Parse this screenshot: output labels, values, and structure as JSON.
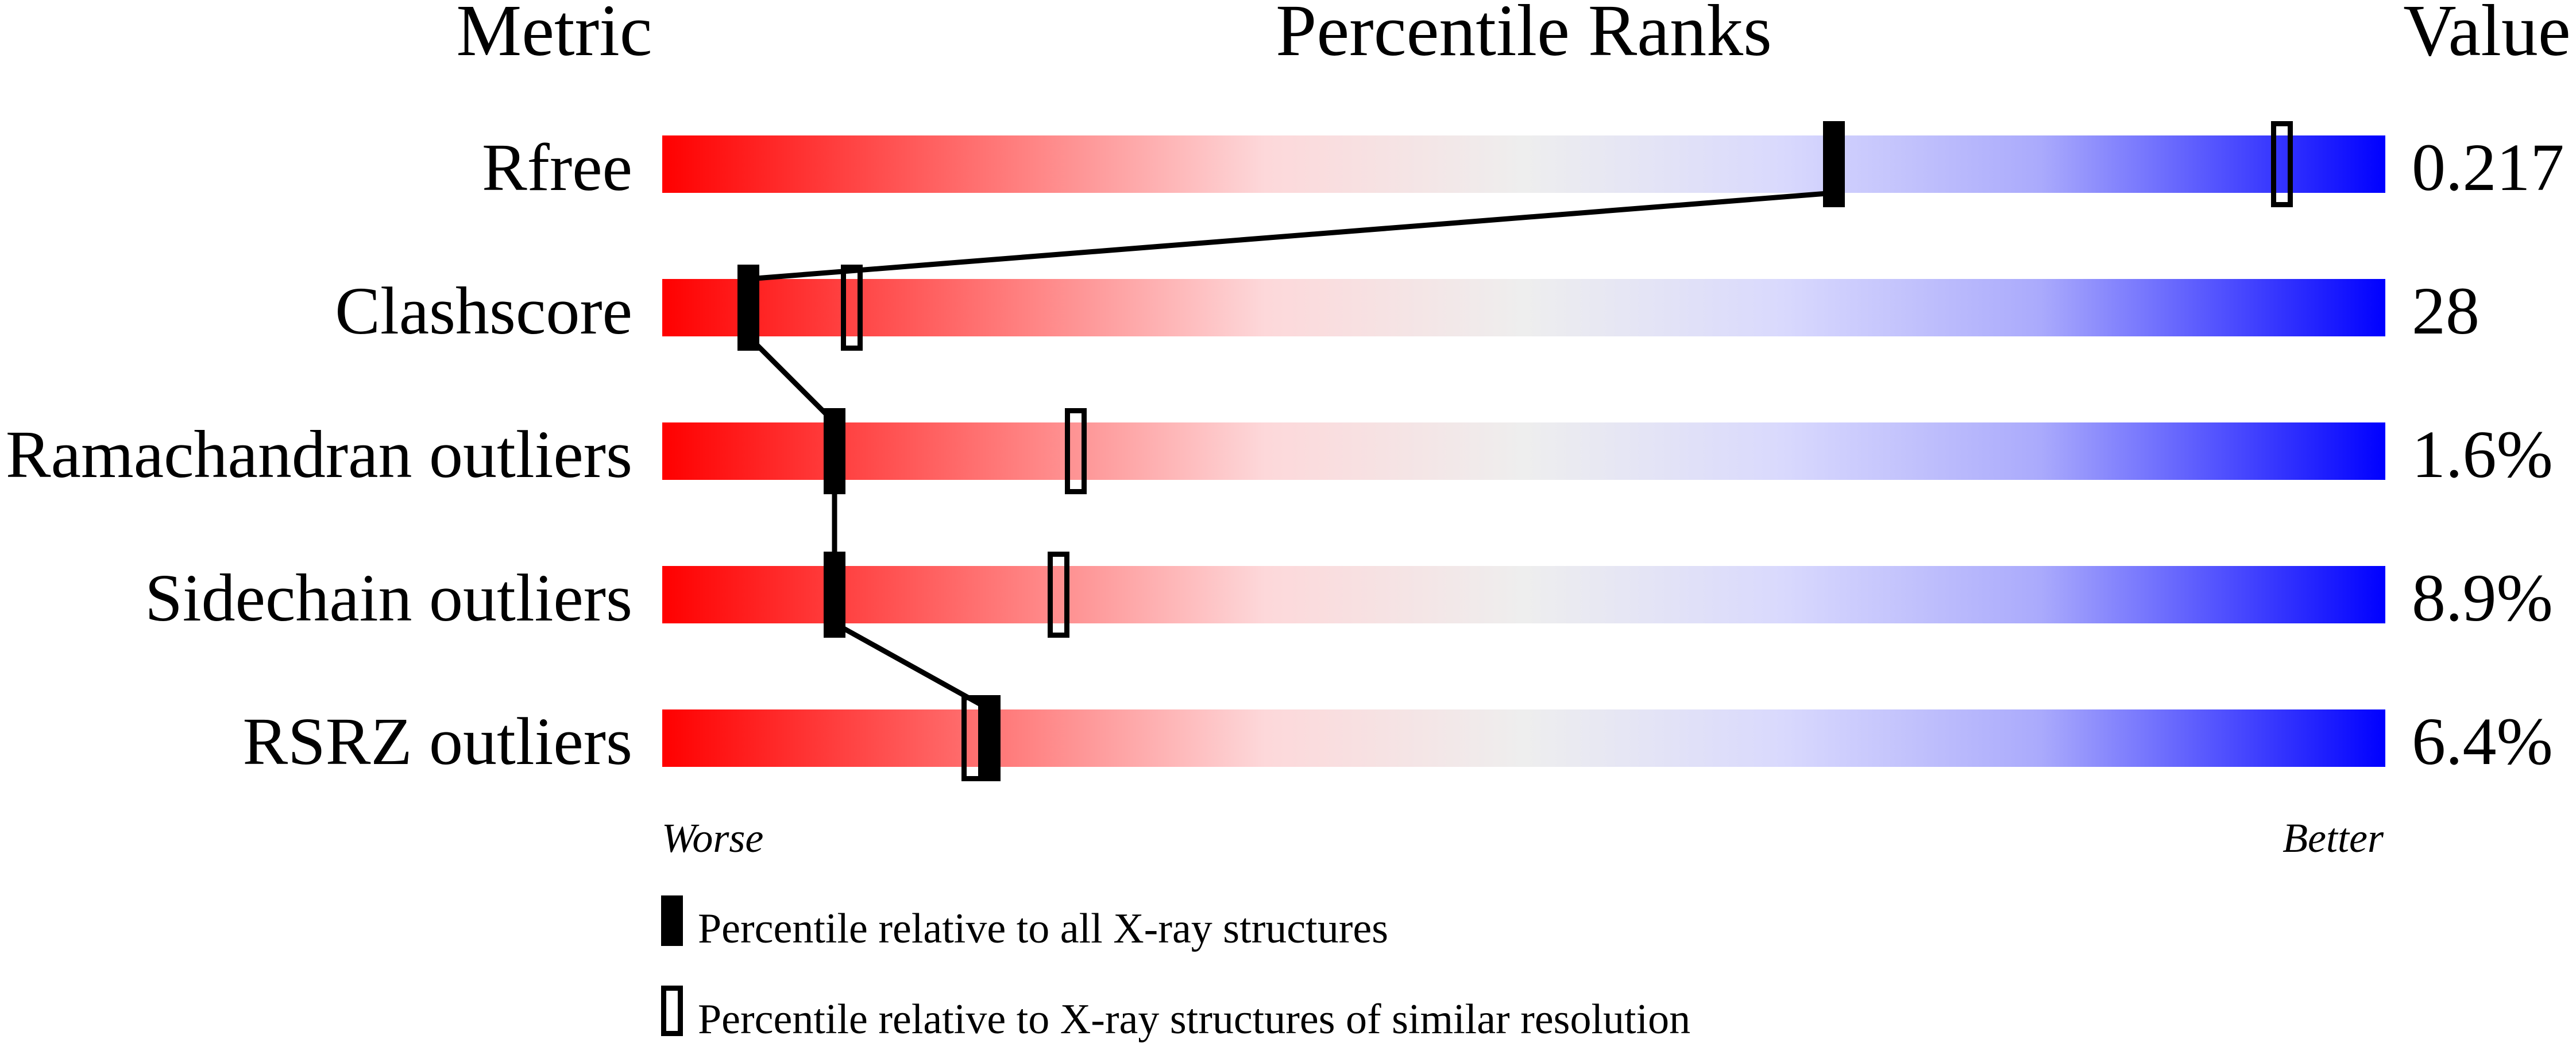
{
  "chart_data": {
    "type": "percentile-slider",
    "headers": {
      "metric": "Metric",
      "ranks": "Percentile Ranks",
      "value": "Value"
    },
    "xlim": [
      0,
      100
    ],
    "axis_labels": {
      "left": "Worse",
      "right": "Better"
    },
    "gradient_colors": [
      "#ff0000",
      "#fdd8da",
      "#eeeeee",
      "#d9d9fd",
      "#0000ff"
    ],
    "rows": [
      {
        "metric": "Rfree",
        "value": "0.217",
        "percentile_all": 68,
        "percentile_similar": 94
      },
      {
        "metric": "Clashscore",
        "value": "28",
        "percentile_all": 5,
        "percentile_similar": 11
      },
      {
        "metric": "Ramachandran outliers",
        "value": "1.6%",
        "percentile_all": 10,
        "percentile_similar": 24
      },
      {
        "metric": "Sidechain outliers",
        "value": "8.9%",
        "percentile_all": 10,
        "percentile_similar": 23
      },
      {
        "metric": "RSRZ outliers",
        "value": "6.4%",
        "percentile_all": 19,
        "percentile_similar": 18
      }
    ],
    "legend": [
      {
        "marker": "filled",
        "label": "Percentile relative to all X-ray structures"
      },
      {
        "marker": "open",
        "label": "Percentile relative to X-ray structures of similar resolution"
      }
    ]
  }
}
